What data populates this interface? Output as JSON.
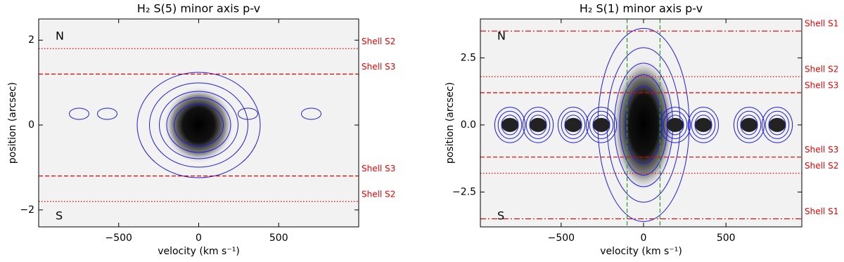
{
  "chart_data": [
    {
      "type": "pv-diagram",
      "title": "H₂ S(5) minor axis p-v",
      "x_label": "velocity (km s⁻¹)",
      "y_label": "position (arcsec)",
      "xlim": [
        -1000,
        1000
      ],
      "ylim": [
        -2.4,
        2.5
      ],
      "xticks": [
        {
          "value": -500,
          "label": "−500"
        },
        0,
        500
      ],
      "yticks": [
        {
          "value": -2,
          "label": "−2"
        },
        0,
        2
      ],
      "hlines": [
        {
          "value": 1.8,
          "label": "Shell S2",
          "style": "dotted",
          "color": "#e00000"
        },
        {
          "value": 1.2,
          "label": "Shell S3",
          "style": "dashed",
          "color": "#e00000"
        },
        {
          "value": -1.2,
          "label": "Shell S3",
          "style": "dashed",
          "color": "#e00000"
        },
        {
          "value": -1.8,
          "label": "Shell S2",
          "style": "dotted",
          "color": "#e00000"
        }
      ],
      "vlines": [],
      "annotations": [
        "N",
        "S"
      ],
      "contour_color": "#1f1fe0"
    },
    {
      "type": "pv-diagram",
      "title": "H₂ S(1) minor axis p-v",
      "x_label": "velocity (km s⁻¹)",
      "y_label": "position (arcsec)",
      "xlim": [
        -990,
        960
      ],
      "ylim": [
        -3.8,
        3.95
      ],
      "xticks": [
        {
          "value": -500,
          "label": "−500"
        },
        0,
        500
      ],
      "yticks": [
        {
          "value": -2.5,
          "label": "−2.5"
        },
        {
          "value": 0,
          "label": "0.0"
        },
        2.5
      ],
      "hlines": [
        {
          "value": 3.5,
          "label": "Shell S1",
          "style": "dashdot",
          "color": "#e00000"
        },
        {
          "value": 1.8,
          "label": "Shell S2",
          "style": "dotted",
          "color": "#e00000"
        },
        {
          "value": 1.2,
          "label": "Shell S3",
          "style": "dashed",
          "color": "#e00000"
        },
        {
          "value": -1.2,
          "label": "Shell S3",
          "style": "dashed",
          "color": "#e00000"
        },
        {
          "value": -1.8,
          "label": "Shell S2",
          "style": "dotted",
          "color": "#e00000"
        },
        {
          "value": -3.5,
          "label": "Shell S1",
          "style": "dashdot",
          "color": "#e00000"
        }
      ],
      "vlines": [
        {
          "value": -100,
          "style": "dashed",
          "color": "#2a9a2a"
        },
        {
          "value": 100,
          "style": "dashed",
          "color": "#2a9a2a"
        }
      ],
      "annotations": [
        "N",
        "S"
      ],
      "contour_color": "#1f1fe0"
    }
  ]
}
